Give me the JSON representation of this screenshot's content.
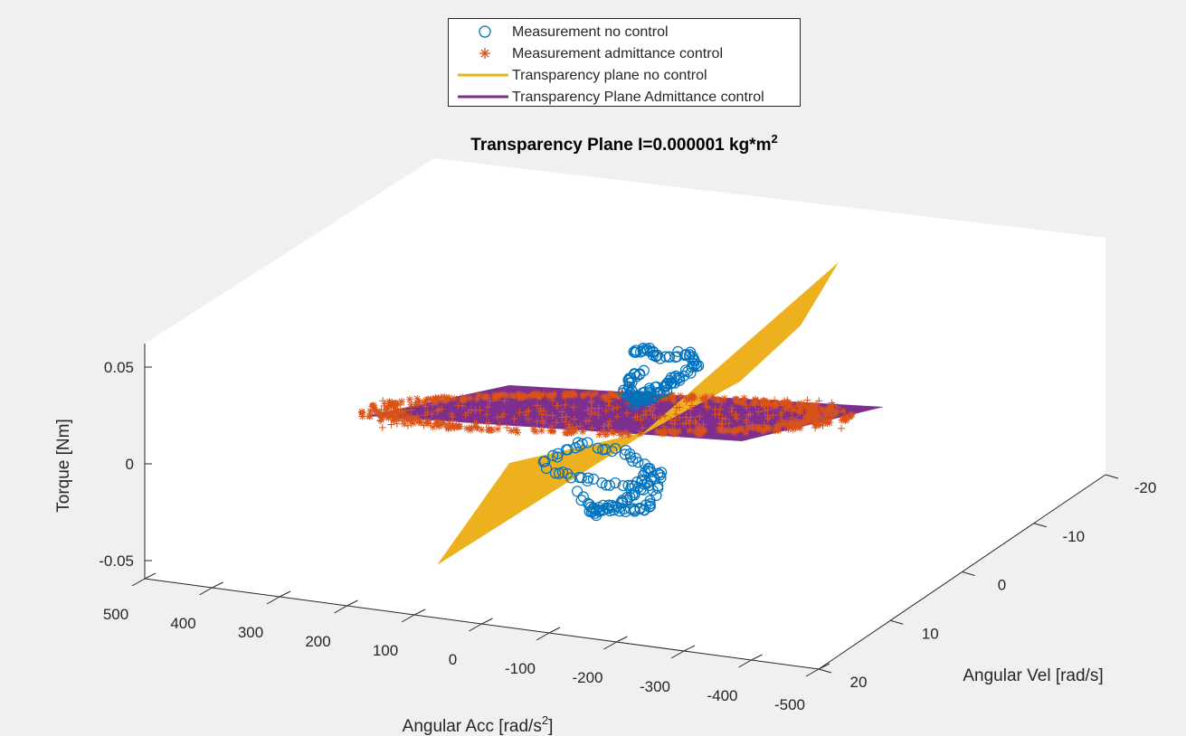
{
  "chart_data": {
    "type": "scatter",
    "title": "Transparency Plane I=0.000001 kg*m",
    "title_superscript": "2",
    "xlabel": "Angular Acc [rad/s",
    "xlabel_superscript": "2",
    "xlabel_suffix": "]",
    "ylabel": "Angular Vel [rad/s]",
    "zlabel": "Torque [Nm]",
    "xlim": [
      -500,
      500
    ],
    "ylim": [
      -20,
      20
    ],
    "zlim": [
      -0.06,
      0.06
    ],
    "x_ticks": [
      "500",
      "400",
      "300",
      "200",
      "100",
      "0",
      "-100",
      "-200",
      "-300",
      "-400",
      "-500"
    ],
    "y_ticks": [
      "-20",
      "-10",
      "0",
      "10",
      "20"
    ],
    "z_ticks": [
      "0.05",
      "0",
      "-0.05"
    ],
    "legend_position": "top-center",
    "grid": false,
    "series": [
      {
        "name": "Measurement no control",
        "marker": "circle",
        "color": "#0072BD"
      },
      {
        "name": "Measurement admittance control",
        "marker": "asterisk",
        "color": "#D95319"
      },
      {
        "name": "Transparency plane no control",
        "marker": "surface",
        "color": "#EDB120"
      },
      {
        "name": "Transparency Plane Admittance control",
        "marker": "surface",
        "color": "#7E2F8E"
      }
    ]
  }
}
